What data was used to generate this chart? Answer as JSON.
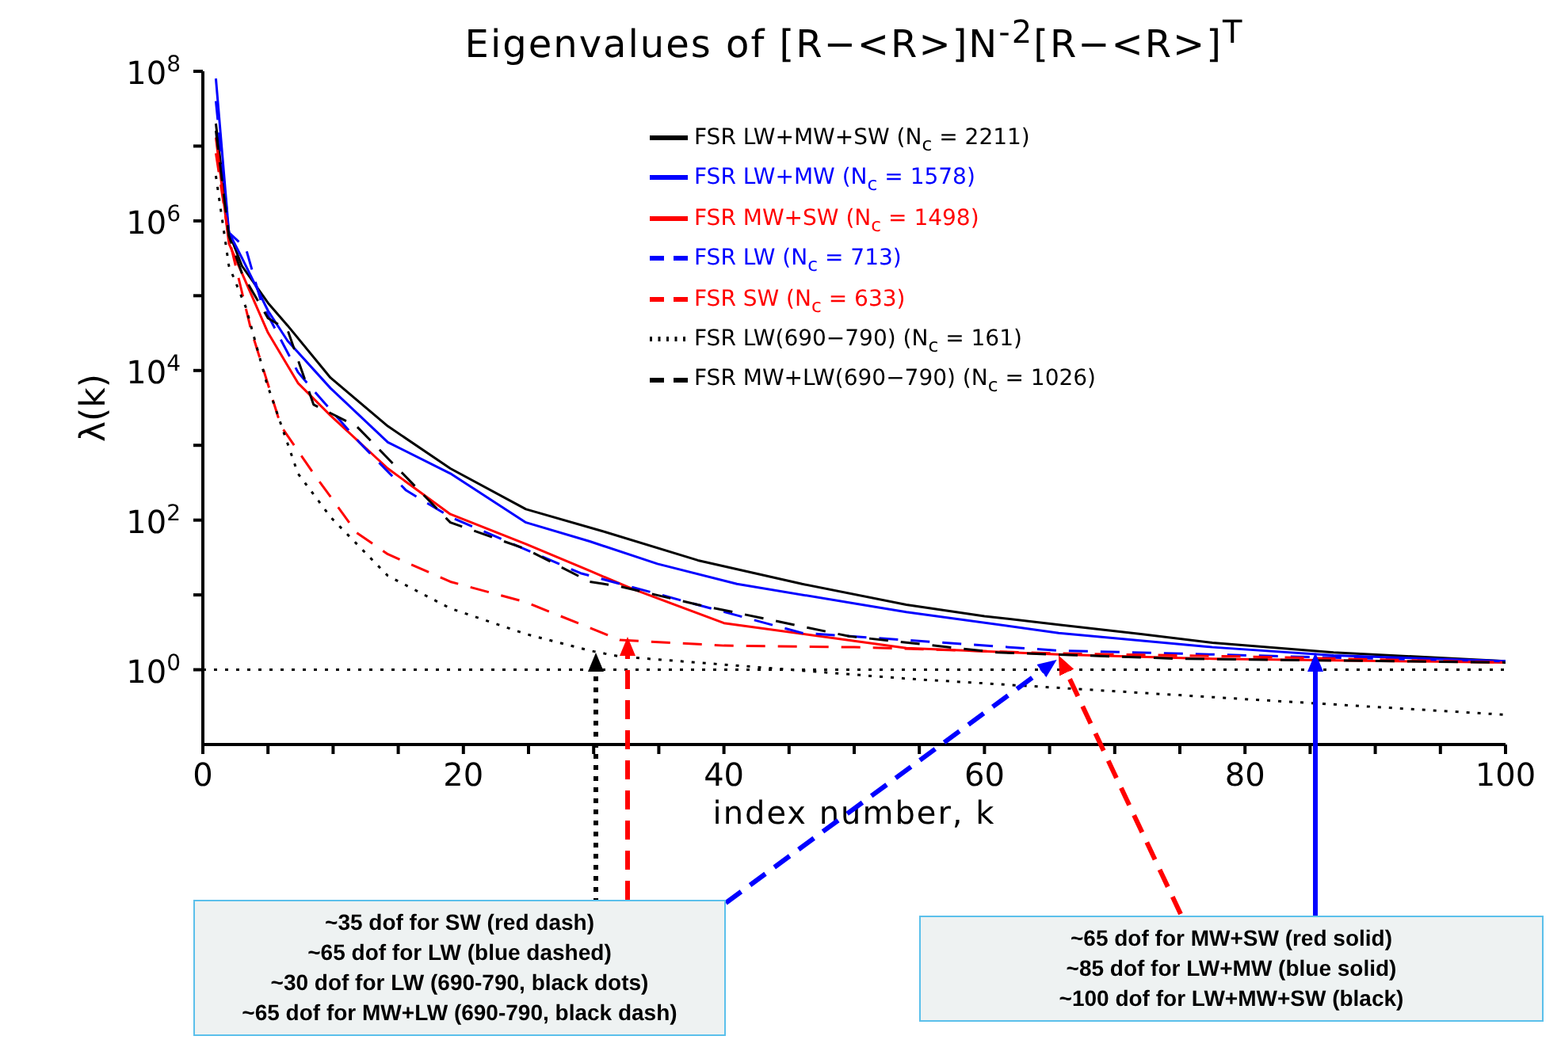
{
  "chart_data": {
    "type": "line",
    "title": "Eigenvalues of [R−<R>]N$^{-2}$[R−<R>]$^{T}$",
    "xlabel": "index number, k",
    "ylabel": "λ(k)",
    "xlim": [
      0,
      100
    ],
    "xticks": [
      0,
      {
        "value": 5,
        "label": null
      },
      {
        "value": 10,
        "label": null
      },
      {
        "value": 15,
        "label": null
      },
      20,
      {
        "value": 25,
        "label": null
      },
      {
        "value": 30,
        "label": null
      },
      {
        "value": 35,
        "label": null
      },
      40,
      {
        "value": 45,
        "label": null
      },
      {
        "value": 50,
        "label": null
      },
      {
        "value": 55,
        "label": null
      },
      60,
      {
        "value": 65,
        "label": null
      },
      {
        "value": 70,
        "label": null
      },
      {
        "value": 75,
        "label": null
      },
      80,
      {
        "value": 85,
        "label": null
      },
      {
        "value": 90,
        "label": null
      },
      {
        "value": 95,
        "label": null
      },
      100
    ],
    "ylim": [
      0.1,
      100000000
    ],
    "log": "y",
    "yticks": [
      {
        "value": 1,
        "label": "10$^{0}$"
      },
      {
        "value": 10,
        "label": null
      },
      {
        "value": 100,
        "label": "10$^{2}$"
      },
      {
        "value": 1000,
        "label": null
      },
      {
        "value": 10000,
        "label": "10$^{4}$"
      },
      {
        "value": 100000,
        "label": null
      },
      {
        "value": 1000000,
        "label": "10$^{6}$"
      },
      {
        "value": 10000000,
        "label": null
      },
      {
        "value": 100000000,
        "label": "10$^{8}$"
      }
    ],
    "grid": false,
    "legend": "top right",
    "series": [
      {
        "name": "FSR LW+MW+SW (N$_{c}$ = 2211)",
        "color": "#000000",
        "line_style": "solid",
        "x": [
          1,
          2,
          3,
          5,
          6.5,
          9.8,
          14.2,
          19,
          24.8,
          30.7,
          38,
          46,
          54,
          60,
          65.7,
          72,
          77.5,
          86.8,
          100
        ],
        "values": [
          20000000,
          700000,
          250000,
          80000,
          40000,
          8000,
          1800,
          490,
          140,
          71,
          29,
          14,
          7.4,
          5.2,
          4,
          3,
          2.3,
          1.7,
          1.3
        ]
      },
      {
        "name": "FSR LW+MW (N$_{c}$ = 1578)",
        "color": "#0000ff",
        "line_style": "solid",
        "x": [
          1,
          2,
          3,
          5,
          6.5,
          9.8,
          14.2,
          19,
          24.8,
          29.7,
          34.9,
          41,
          54,
          65.7,
          77.5,
          86.8,
          100
        ],
        "values": [
          80000000,
          700000,
          320000,
          63000,
          25000,
          5800,
          1100,
          420,
          93,
          52,
          26,
          14,
          5.9,
          3.1,
          2,
          1.55,
          1.3
        ]
      },
      {
        "name": "FSR MW+SW (N$_{c}$ = 1498)",
        "color": "#ff0000",
        "line_style": "solid",
        "x": [
          1,
          2,
          3,
          5,
          7.3,
          9.8,
          14.2,
          19,
          24.8,
          29.7,
          33,
          40,
          54,
          65.7,
          77.5,
          100
        ],
        "values": [
          13000000,
          500000,
          200000,
          32000,
          6800,
          2500,
          490,
          120,
          48,
          21,
          12,
          4.2,
          1.95,
          1.6,
          1.4,
          1.25
        ]
      },
      {
        "name": "FSR LW (N$_{c}$ = 713)",
        "color": "#0000ff",
        "line_style": "dashed",
        "x": [
          1,
          2,
          3.3,
          4.5,
          7.3,
          8.5,
          12,
          15.6,
          19,
          29,
          46,
          65.7,
          77.5,
          86.8,
          100
        ],
        "values": [
          40000000,
          700000,
          430000,
          80000,
          9500,
          5400,
          1100,
          250,
          110,
          19.5,
          3.1,
          1.8,
          1.6,
          1.45,
          1.3
        ]
      },
      {
        "name": "FSR SW (N$_{c}$ = 633)",
        "color": "#ff0000",
        "line_style": "dashed",
        "x": [
          1,
          2,
          3.7,
          6,
          8.5,
          11.8,
          14.2,
          19,
          24.8,
          32,
          40,
          50,
          65.7,
          80,
          100
        ],
        "values": [
          8000000,
          590000,
          35000,
          1800,
          420,
          68,
          35,
          15,
          8,
          2.5,
          2.1,
          2,
          1.65,
          1.5,
          1.25
        ]
      },
      {
        "name": "FSR LW(690−790) (N$_{c}$ = 161)",
        "color": "#000000",
        "line_style": "dotted",
        "x": [
          1,
          2,
          3.3,
          4.9,
          7.3,
          9.8,
          14.2,
          19,
          24.8,
          29.7,
          32,
          54,
          77.5,
          100
        ],
        "values": [
          4000000,
          250000,
          70000,
          6800,
          420,
          110,
          18,
          6.6,
          3,
          1.8,
          1.5,
          0.76,
          0.43,
          0.25
        ]
      },
      {
        "name": "FSR MW+LW(690−790) (N$_{c}$ = 1026)",
        "color": "#000000",
        "line_style": "dashed",
        "x": [
          1,
          2,
          3,
          5,
          6.5,
          8.5,
          11.8,
          19,
          24.8,
          29.7,
          32,
          38,
          49.6,
          61,
          75,
          100
        ],
        "values": [
          16000000,
          630000,
          200000,
          50000,
          35000,
          3500,
          1800,
          93,
          41,
          15,
          13,
          7.4,
          2.8,
          1.7,
          1.4,
          1.25
        ]
      }
    ],
    "ref_lines": [
      {
        "axis": "y",
        "value": 1,
        "label": null,
        "color": "#000000",
        "line_style": "dotted"
      }
    ],
    "annotations": [
      "~35 dof for SW (red dash)\n~65 dof for LW (blue dashed)\n~30 dof for LW (690-790, black dots)\n~65 dof for MW+LW (690-790, black dash)",
      {
        "text": "~65 dof for MW+SW (red solid)",
        "x": 66,
        "y": 1.6
      },
      "~85 dof for LW+MW (blue solid)",
      "~100 dof for LW+MW+SW (black)"
    ]
  }
}
